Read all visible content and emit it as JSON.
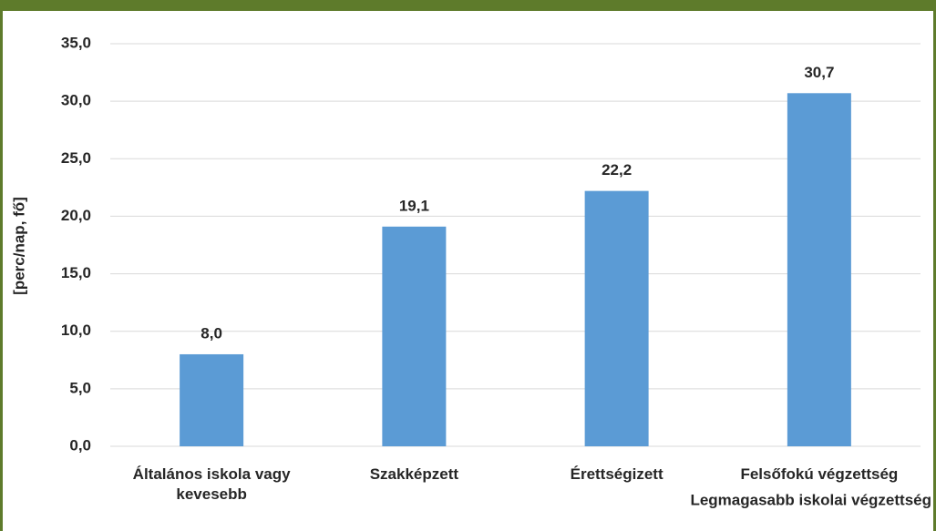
{
  "chart_data": {
    "type": "bar",
    "categories": [
      "Általános iskola vagy kevesebb",
      "Szakképzett",
      "Érettségizett",
      "Felsőfokú végzettség"
    ],
    "values": [
      8.0,
      19.1,
      22.2,
      30.7
    ],
    "value_labels": [
      "8,0",
      "19,1",
      "22,2",
      "30,7"
    ],
    "color": "#5b9bd5",
    "ylim": [
      0,
      35
    ],
    "yticks": [
      {
        "value": 0,
        "label": "0,0"
      },
      {
        "value": 5,
        "label": "5,0"
      },
      {
        "value": 10,
        "label": "10,0"
      },
      {
        "value": 15,
        "label": "15,0"
      },
      {
        "value": 20,
        "label": "20,0"
      },
      {
        "value": 25,
        "label": "25,0"
      },
      {
        "value": 30,
        "label": "30,0"
      },
      {
        "value": 35,
        "label": "35,0"
      }
    ],
    "y_label": "[perc/nap, fő]",
    "x_label": "Legmagasabb iskolai végzettség",
    "grid": true
  }
}
